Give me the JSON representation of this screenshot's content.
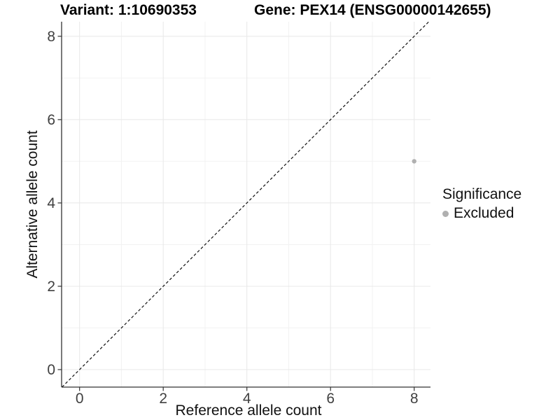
{
  "chart_data": {
    "type": "scatter",
    "title_left": "Variant: 1:10690353",
    "title_right": "Gene: PEX14 (ENSG00000142655)",
    "xlabel": "Reference allele count",
    "ylabel": "Alternative allele count",
    "xlim": [
      -0.43,
      8.39
    ],
    "ylim": [
      -0.42,
      8.35
    ],
    "x_ticks": [
      0,
      2,
      4,
      6,
      8
    ],
    "y_ticks": [
      0,
      2,
      4,
      6,
      8
    ],
    "x_minor_ticks": [
      1,
      3,
      5,
      7
    ],
    "y_minor_ticks": [
      1,
      3,
      5,
      7
    ],
    "grid": "major+minor",
    "series": [
      {
        "name": "Excluded",
        "color": "#b0b0b0",
        "points": [
          {
            "x": 8,
            "y": 5
          }
        ]
      }
    ],
    "reference_line": {
      "kind": "identity y=x",
      "style": "dashed",
      "color": "#111111"
    },
    "legend_position": "right"
  },
  "legend": {
    "title": "Significance",
    "items": [
      {
        "label": "Excluded",
        "color": "#b0b0b0",
        "marker": "circle"
      }
    ]
  },
  "style": {
    "background": "#ffffff",
    "axis_color": "#333333",
    "tick_label_color": "#404040",
    "grid_major_color": "#e8e8e8",
    "grid_minor_color": "#f2f2f2",
    "point_radius": 3.2
  }
}
